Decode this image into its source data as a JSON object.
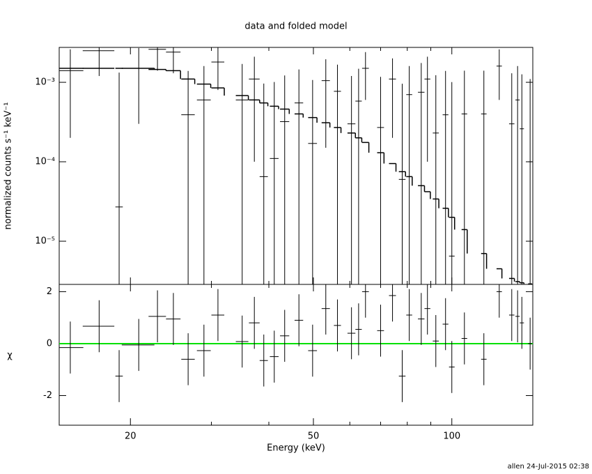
{
  "chart_data": [
    {
      "type": "errorbar",
      "title": "data and folded model",
      "ylabel": "normalized counts s⁻¹ keV⁻¹",
      "xlog": true,
      "ylog": true,
      "xlim": [
        14,
        150
      ],
      "ylim": [
        2.86e-06,
        0.00275
      ],
      "yticks": [
        {
          "value": 0.001,
          "label": "10⁻³"
        },
        {
          "value": 0.0001,
          "label": "10⁻⁴"
        },
        {
          "value": 1e-05,
          "label": "10⁻⁵"
        }
      ],
      "color": "#000000",
      "x": [
        14.8,
        17.1,
        18.9,
        20.85,
        22.9,
        24.8,
        26.7,
        28.9,
        31.0,
        35.0,
        37.2,
        39.0,
        41.1,
        43.3,
        46.5,
        49.8,
        53.2,
        56.4,
        60.5,
        62.7,
        64.9,
        70.0,
        74.3,
        78.0,
        80.8,
        85.8,
        88.5,
        92.3,
        96.9,
        100,
        106.5,
        117.4,
        126.8,
        135,
        139,
        142,
        148
      ],
      "xerr": [
        1.0,
        1.35,
        0.35,
        1.7,
        1.0,
        0.9,
        0.9,
        1.0,
        1.0,
        1.1,
        1.0,
        0.8,
        0.9,
        1.0,
        1.0,
        1.1,
        1.1,
        1.0,
        1.2,
        1.0,
        1.1,
        1.2,
        1.3,
        1.3,
        1.2,
        1.4,
        1.3,
        1.4,
        1.4,
        1.4,
        1.5,
        1.6,
        1.7,
        1.8,
        1.5,
        1.5,
        1.5
      ],
      "y": [
        0.0014,
        0.0025,
        2.7e-05,
        0.0015,
        0.0026,
        0.0024,
        0.00039,
        0.0006,
        0.0018,
        0.0006,
        0.0011,
        6.5e-05,
        0.00011,
        0.00032,
        0.00055,
        0.00017,
        0.00105,
        0.00077,
        0.0003,
        0.00058,
        0.0015,
        0.00027,
        0.0011,
        6e-05,
        0.0007,
        0.00075,
        0.0011,
        0.00023,
        0.00039,
        6.5e-06,
        0.0004,
        0.0004,
        0.0016,
        0.0003,
        0.0006,
        0.00026,
        0.0001
      ],
      "yerr": [
        0.0012,
        0.0013,
        0.0013,
        0.0012,
        0.0012,
        0.0011,
        0.001,
        0.001,
        0.001,
        0.0011,
        0.001,
        0.0009,
        0.0009,
        0.0009,
        0.0009,
        0.0009,
        0.0009,
        0.0009,
        0.0009,
        0.0009,
        0.0009,
        0.0009,
        0.0009,
        0.0009,
        0.0009,
        0.001,
        0.001,
        0.001,
        0.001,
        0.001,
        0.001,
        0.001,
        0.001,
        0.001,
        0.001,
        0.001,
        0.001
      ],
      "model": [
        0.0015,
        0.0015,
        0.0015,
        0.0015,
        0.00145,
        0.0014,
        0.0011,
        0.00095,
        0.00085,
        0.00068,
        0.0006,
        0.00055,
        0.0005,
        0.00046,
        0.0004,
        0.00036,
        0.00031,
        0.00027,
        0.00023,
        0.0002,
        0.000175,
        0.00013,
        9.5e-05,
        7.5e-05,
        6.5e-05,
        5e-05,
        4.2e-05,
        3.4e-05,
        2.6e-05,
        2e-05,
        1.4e-05,
        7e-06,
        4.5e-06,
        3.4e-06,
        3.1e-06,
        3e-06,
        2.9e-06
      ]
    },
    {
      "type": "residual",
      "xlabel": "Energy (keV)",
      "ylabel": "χ",
      "xlog": true,
      "xlim": [
        14,
        150
      ],
      "xticks": [
        20,
        50,
        100
      ],
      "xminorticks": [
        30,
        40,
        60,
        70,
        80,
        90
      ],
      "ylim": [
        -3.14,
        2.28
      ],
      "yticks": [
        -2,
        0,
        2
      ],
      "values": [
        -0.15,
        0.67,
        -1.25,
        -0.05,
        1.05,
        0.95,
        -0.6,
        -0.27,
        1.1,
        0.08,
        0.8,
        -0.65,
        -0.5,
        0.3,
        0.9,
        -0.27,
        1.35,
        0.7,
        0.4,
        0.55,
        2.0,
        0.5,
        1.85,
        -1.25,
        1.1,
        0.95,
        1.35,
        0.1,
        0.75,
        -0.9,
        0.2,
        -0.6,
        2.0,
        1.1,
        1.05,
        0.8,
        0
      ],
      "error": 1,
      "color": "#000000",
      "zero_line": 0,
      "zero_color": "#00e000"
    }
  ],
  "footer": "allen 24-Jul-2015 02:38"
}
